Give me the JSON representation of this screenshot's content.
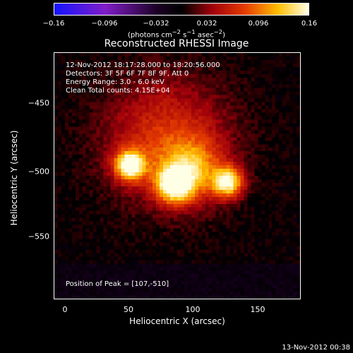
{
  "colorbar": {
    "ticks": [
      "−0.16",
      "−0.096",
      "−0.032",
      "0.032",
      "0.096",
      "0.16"
    ],
    "units_html": "(photons cm<sup>−2</sup> s<sup>−1</sup> asec<sup>−2</sup>)"
  },
  "title": "Reconstructed RHESSI Image",
  "info": {
    "time_range": "12-Nov-2012 18:17:28.000 to 18:20:56.000",
    "detectors": "Detectors: 3F 5F 6F 7F 8F 9F, Att 0",
    "energy": "Energy Range: 3.0 - 6.0 keV",
    "method": "Clean    Total counts: 4.15E+04",
    "peak": "Position of Peak = [107,-510]"
  },
  "axes": {
    "xlabel": "Heliocentric X (arcsec)",
    "ylabel": "Heliocentric Y (arcsec)",
    "xticks": [
      "0",
      "50",
      "100",
      "150"
    ],
    "yticks": [
      "−450",
      "−500",
      "−550"
    ]
  },
  "footer": "13-Nov-2012 00:38"
}
